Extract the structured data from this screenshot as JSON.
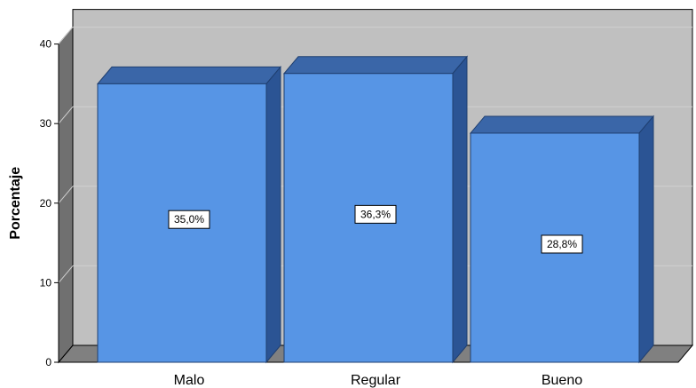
{
  "chart_data": {
    "type": "bar",
    "style": "3d",
    "categories": [
      "Malo",
      "Regular",
      "Bueno"
    ],
    "values": [
      35.0,
      36.3,
      28.8
    ],
    "data_labels": [
      "35,0%",
      "36,3%",
      "28,8%"
    ],
    "ylabel": "Porcentaje",
    "ylim": [
      0,
      40
    ],
    "yticks": [
      "0",
      "10",
      "20",
      "30",
      "40"
    ],
    "grid": true,
    "legend": "none",
    "colors": {
      "bar_front": "#5795E5",
      "bar_side": "#2B5494",
      "bar_top": "#3A66A8",
      "bar_edge": "#1F3F70",
      "wall_back": "#C0C0C0",
      "wall_side": "#707070",
      "floor": "#808080",
      "grid": "#D0D0D0"
    }
  }
}
